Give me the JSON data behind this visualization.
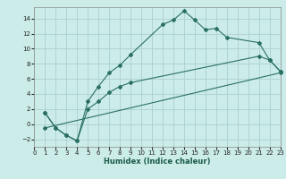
{
  "background_color": "#ccecea",
  "grid_color": "#b0d4d0",
  "line_color": "#2a7060",
  "xlabel": "Humidex (Indice chaleur)",
  "xlim": [
    0,
    23
  ],
  "ylim": [
    -3.0,
    15.5
  ],
  "xticks": [
    0,
    1,
    2,
    3,
    4,
    5,
    6,
    7,
    8,
    9,
    10,
    11,
    12,
    13,
    14,
    15,
    16,
    17,
    18,
    19,
    20,
    21,
    22,
    23
  ],
  "yticks": [
    -2,
    0,
    2,
    4,
    6,
    8,
    10,
    12,
    14
  ],
  "curve1_x": [
    1,
    2,
    3,
    4,
    5,
    6,
    7,
    8,
    9,
    12,
    13,
    14,
    15,
    16,
    17,
    18,
    21,
    22,
    23
  ],
  "curve1_y": [
    1.5,
    -0.5,
    -1.5,
    -2.2,
    3.0,
    5.0,
    6.8,
    7.8,
    9.2,
    13.2,
    13.8,
    15.0,
    13.8,
    12.5,
    12.7,
    11.5,
    10.8,
    8.5,
    7.0
  ],
  "curve2_x": [
    1,
    2,
    3,
    4,
    5,
    6,
    7,
    8,
    9,
    21,
    22,
    23
  ],
  "curve2_y": [
    1.5,
    -0.5,
    -1.5,
    -2.2,
    2.0,
    3.0,
    4.2,
    5.0,
    5.5,
    9.0,
    8.5,
    7.0
  ],
  "curve3_x": [
    1,
    23
  ],
  "curve3_y": [
    -0.5,
    6.8
  ]
}
